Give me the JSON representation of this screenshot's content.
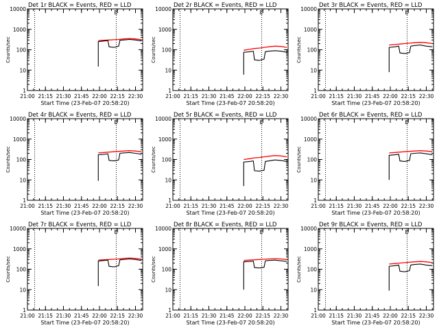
{
  "colors": {
    "events": "#000000",
    "lld": "#ff0000",
    "axes": "#000000",
    "background": "#ffffff"
  },
  "chart_data": [
    {
      "type": "line",
      "title": "Det 1r BLACK = Events, RED = LLD",
      "xlabel": "Start Time (23-Feb-07 20:58:20)",
      "ylabel": "Counts/sec",
      "xticks": [
        "21:00",
        "21:15",
        "21:30",
        "21:45",
        "22:00",
        "22:15",
        "22:30"
      ],
      "yticks": [
        "1",
        "10",
        "100",
        "1000",
        "10000"
      ],
      "ylim": [
        1,
        10000
      ],
      "y_scale": "log",
      "xlim": [
        "21:00",
        "22:36"
      ],
      "dotted_lines_x": [
        "21:06",
        "22:14"
      ],
      "flag_label": "E",
      "series": [
        {
          "color": "red",
          "x": [
            "21:59",
            "22:04",
            "22:08",
            "22:12",
            "22:16",
            "22:20",
            "22:25",
            "22:30",
            "22:35"
          ],
          "values": [
            280,
            290,
            300,
            310,
            320,
            340,
            350,
            340,
            310
          ]
        },
        {
          "color": "black",
          "x": [
            "21:59",
            "21:59",
            "22:04",
            "22:07",
            "22:08",
            "22:12",
            "22:16",
            "22:17",
            "22:20",
            "22:25",
            "22:30",
            "22:35"
          ],
          "values": [
            15,
            250,
            270,
            280,
            140,
            130,
            150,
            290,
            300,
            320,
            300,
            270
          ]
        }
      ]
    },
    {
      "type": "line",
      "title": "Det 2r BLACK = Events, RED = LLD",
      "xlabel": "Start Time (23-Feb-07 20:58:20)",
      "ylabel": "Counts/sec",
      "xticks": [
        "21:00",
        "21:15",
        "21:30",
        "21:45",
        "22:00",
        "22:15",
        "22:30"
      ],
      "yticks": [
        "1",
        "10",
        "100",
        "1000",
        "10000"
      ],
      "ylim": [
        1,
        10000
      ],
      "y_scale": "log",
      "xlim": [
        "21:00",
        "22:36"
      ],
      "dotted_lines_x": [
        "21:06",
        "22:14"
      ],
      "flag_label": "E",
      "series": [
        {
          "color": "red",
          "x": [
            "21:59",
            "22:04",
            "22:08",
            "22:12",
            "22:16",
            "22:20",
            "22:25",
            "22:30",
            "22:35"
          ],
          "values": [
            95,
            105,
            115,
            120,
            130,
            140,
            150,
            145,
            130
          ]
        },
        {
          "color": "black",
          "x": [
            "21:59",
            "21:59",
            "22:04",
            "22:07",
            "22:08",
            "22:12",
            "22:16",
            "22:17",
            "22:20",
            "22:25",
            "22:30",
            "22:35"
          ],
          "values": [
            6,
            75,
            80,
            85,
            32,
            30,
            35,
            80,
            85,
            90,
            85,
            75
          ]
        }
      ]
    },
    {
      "type": "line",
      "title": "Det 3r BLACK = Events, RED = LLD",
      "xlabel": "Start Time (23-Feb-07 20:58:20)",
      "ylabel": "Counts/sec",
      "xticks": [
        "21:00",
        "21:15",
        "21:30",
        "21:45",
        "22:00",
        "22:15",
        "22:30"
      ],
      "yticks": [
        "1",
        "10",
        "100",
        "1000",
        "10000"
      ],
      "ylim": [
        1,
        10000
      ],
      "y_scale": "log",
      "xlim": [
        "21:00",
        "22:36"
      ],
      "dotted_lines_x": [
        "21:06",
        "22:14"
      ],
      "flag_label": "E",
      "series": [
        {
          "color": "red",
          "x": [
            "21:59",
            "22:04",
            "22:08",
            "22:12",
            "22:16",
            "22:20",
            "22:25",
            "22:30",
            "22:35"
          ],
          "values": [
            170,
            180,
            190,
            200,
            210,
            220,
            230,
            220,
            200
          ]
        },
        {
          "color": "black",
          "x": [
            "21:59",
            "21:59",
            "22:04",
            "22:07",
            "22:08",
            "22:12",
            "22:16",
            "22:17",
            "22:20",
            "22:25",
            "22:30",
            "22:35"
          ],
          "values": [
            8,
            130,
            140,
            150,
            70,
            65,
            72,
            150,
            160,
            170,
            150,
            140
          ]
        }
      ]
    },
    {
      "type": "line",
      "title": "Det 4r BLACK = Events, RED = LLD",
      "xlabel": "Start Time (23-Feb-07 20:58:20)",
      "ylabel": "Counts/sec",
      "xticks": [
        "21:00",
        "21:15",
        "21:30",
        "21:45",
        "22:00",
        "22:15",
        "22:30"
      ],
      "yticks": [
        "1",
        "10",
        "100",
        "1000",
        "10000"
      ],
      "ylim": [
        1,
        10000
      ],
      "y_scale": "log",
      "xlim": [
        "21:00",
        "22:36"
      ],
      "dotted_lines_x": [
        "21:06",
        "22:14"
      ],
      "flag_label": "E",
      "series": [
        {
          "color": "red",
          "x": [
            "21:59",
            "22:04",
            "22:08",
            "22:12",
            "22:16",
            "22:20",
            "22:25",
            "22:30",
            "22:35"
          ],
          "values": [
            210,
            220,
            230,
            240,
            250,
            260,
            270,
            260,
            240
          ]
        },
        {
          "color": "black",
          "x": [
            "21:59",
            "21:59",
            "22:04",
            "22:07",
            "22:08",
            "22:12",
            "22:16",
            "22:17",
            "22:20",
            "22:25",
            "22:30",
            "22:35"
          ],
          "values": [
            9,
            170,
            180,
            190,
            90,
            85,
            95,
            200,
            210,
            220,
            200,
            180
          ]
        }
      ]
    },
    {
      "type": "line",
      "title": "Det 5r BLACK = Events, RED = LLD",
      "xlabel": "Start Time (23-Feb-07 20:58:20)",
      "ylabel": "Counts/sec",
      "xticks": [
        "21:00",
        "21:15",
        "21:30",
        "21:45",
        "22:00",
        "22:15",
        "22:30"
      ],
      "yticks": [
        "1",
        "10",
        "100",
        "1000",
        "10000"
      ],
      "ylim": [
        1,
        10000
      ],
      "y_scale": "log",
      "xlim": [
        "21:00",
        "22:36"
      ],
      "dotted_lines_x": [
        "21:06",
        "22:14"
      ],
      "flag_label": "E",
      "series": [
        {
          "color": "red",
          "x": [
            "21:59",
            "22:04",
            "22:08",
            "22:12",
            "22:16",
            "22:20",
            "22:25",
            "22:30",
            "22:35"
          ],
          "values": [
            100,
            110,
            120,
            125,
            135,
            145,
            155,
            150,
            135
          ]
        },
        {
          "color": "black",
          "x": [
            "21:59",
            "21:59",
            "22:04",
            "22:07",
            "22:08",
            "22:12",
            "22:16",
            "22:17",
            "22:20",
            "22:25",
            "22:30",
            "22:35"
          ],
          "values": [
            5,
            75,
            80,
            85,
            28,
            27,
            30,
            80,
            85,
            95,
            90,
            80
          ]
        }
      ]
    },
    {
      "type": "line",
      "title": "Det 6r BLACK = Events, RED = LLD",
      "xlabel": "Start Time (23-Feb-07 20:58:20)",
      "ylabel": "Counts/sec",
      "xticks": [
        "21:00",
        "21:15",
        "21:30",
        "21:45",
        "22:00",
        "22:15",
        "22:30"
      ],
      "yticks": [
        "1",
        "10",
        "100",
        "1000",
        "10000"
      ],
      "ylim": [
        1,
        10000
      ],
      "y_scale": "log",
      "xlim": [
        "21:00",
        "22:36"
      ],
      "dotted_lines_x": [
        "21:06",
        "22:14"
      ],
      "flag_label": "E",
      "series": [
        {
          "color": "red",
          "x": [
            "21:59",
            "22:04",
            "22:08",
            "22:12",
            "22:16",
            "22:20",
            "22:25",
            "22:30",
            "22:35"
          ],
          "values": [
            210,
            220,
            230,
            240,
            250,
            260,
            270,
            260,
            240
          ]
        },
        {
          "color": "black",
          "x": [
            "21:59",
            "21:59",
            "22:04",
            "22:07",
            "22:08",
            "22:12",
            "22:16",
            "22:17",
            "22:20",
            "22:25",
            "22:30",
            "22:35"
          ],
          "values": [
            10,
            160,
            170,
            180,
            85,
            80,
            90,
            190,
            200,
            210,
            190,
            170
          ]
        }
      ]
    },
    {
      "type": "line",
      "title": "Det 7r BLACK = Events, RED = LLD",
      "xlabel": "Start Time (23-Feb-07 20:58:20)",
      "ylabel": "Counts/sec",
      "xticks": [
        "21:00",
        "21:15",
        "21:30",
        "21:45",
        "22:00",
        "22:15",
        "22:30"
      ],
      "yticks": [
        "1",
        "10",
        "100",
        "1000",
        "10000"
      ],
      "ylim": [
        1,
        10000
      ],
      "y_scale": "log",
      "xlim": [
        "21:00",
        "22:36"
      ],
      "dotted_lines_x": [
        "21:06",
        "22:14"
      ],
      "flag_label": "E",
      "series": [
        {
          "color": "red",
          "x": [
            "21:59",
            "22:04",
            "22:08",
            "22:12",
            "22:16",
            "22:20",
            "22:25",
            "22:30",
            "22:35"
          ],
          "values": [
            280,
            290,
            300,
            310,
            320,
            340,
            350,
            340,
            310
          ]
        },
        {
          "color": "black",
          "x": [
            "21:59",
            "21:59",
            "22:04",
            "22:07",
            "22:08",
            "22:12",
            "22:16",
            "22:17",
            "22:20",
            "22:25",
            "22:30",
            "22:35"
          ],
          "values": [
            15,
            250,
            270,
            280,
            140,
            130,
            150,
            290,
            300,
            320,
            300,
            270
          ]
        }
      ]
    },
    {
      "type": "line",
      "title": "Det 8r BLACK = Events, RED = LLD",
      "xlabel": "Start Time (23-Feb-07 20:58:20)",
      "ylabel": "Counts/sec",
      "xticks": [
        "21:00",
        "21:15",
        "21:30",
        "21:45",
        "22:00",
        "22:15",
        "22:30"
      ],
      "yticks": [
        "1",
        "10",
        "100",
        "1000",
        "10000"
      ],
      "ylim": [
        1,
        10000
      ],
      "y_scale": "log",
      "xlim": [
        "21:00",
        "22:36"
      ],
      "dotted_lines_x": [
        "21:06",
        "22:14"
      ],
      "flag_label": "E",
      "series": [
        {
          "color": "red",
          "x": [
            "21:59",
            "22:04",
            "22:08",
            "22:12",
            "22:16",
            "22:20",
            "22:25",
            "22:30",
            "22:35"
          ],
          "values": [
            270,
            280,
            290,
            300,
            310,
            320,
            330,
            320,
            300
          ]
        },
        {
          "color": "black",
          "x": [
            "21:59",
            "21:59",
            "22:04",
            "22:07",
            "22:08",
            "22:12",
            "22:16",
            "22:17",
            "22:20",
            "22:25",
            "22:30",
            "22:35"
          ],
          "values": [
            10,
            230,
            240,
            250,
            120,
            115,
            125,
            260,
            270,
            280,
            260,
            240
          ]
        }
      ]
    },
    {
      "type": "line",
      "title": "Det 9r BLACK = Events, RED = LLD",
      "xlabel": "Start Time (23-Feb-07 20:58:20)",
      "ylabel": "Counts/sec",
      "xticks": [
        "21:00",
        "21:15",
        "21:30",
        "21:45",
        "22:00",
        "22:15",
        "22:30"
      ],
      "yticks": [
        "1",
        "10",
        "100",
        "1000",
        "10000"
      ],
      "ylim": [
        1,
        10000
      ],
      "y_scale": "log",
      "xlim": [
        "21:00",
        "22:36"
      ],
      "dotted_lines_x": [
        "21:06",
        "22:14"
      ],
      "flag_label": "E",
      "series": [
        {
          "color": "red",
          "x": [
            "21:59",
            "22:04",
            "22:08",
            "22:12",
            "22:16",
            "22:20",
            "22:25",
            "22:30",
            "22:35"
          ],
          "values": [
            180,
            190,
            200,
            210,
            220,
            230,
            240,
            230,
            210
          ]
        },
        {
          "color": "black",
          "x": [
            "21:59",
            "21:59",
            "22:04",
            "22:07",
            "22:08",
            "22:12",
            "22:16",
            "22:17",
            "22:20",
            "22:25",
            "22:30",
            "22:35"
          ],
          "values": [
            9,
            140,
            150,
            160,
            80,
            75,
            85,
            160,
            170,
            180,
            160,
            150
          ]
        }
      ]
    }
  ]
}
